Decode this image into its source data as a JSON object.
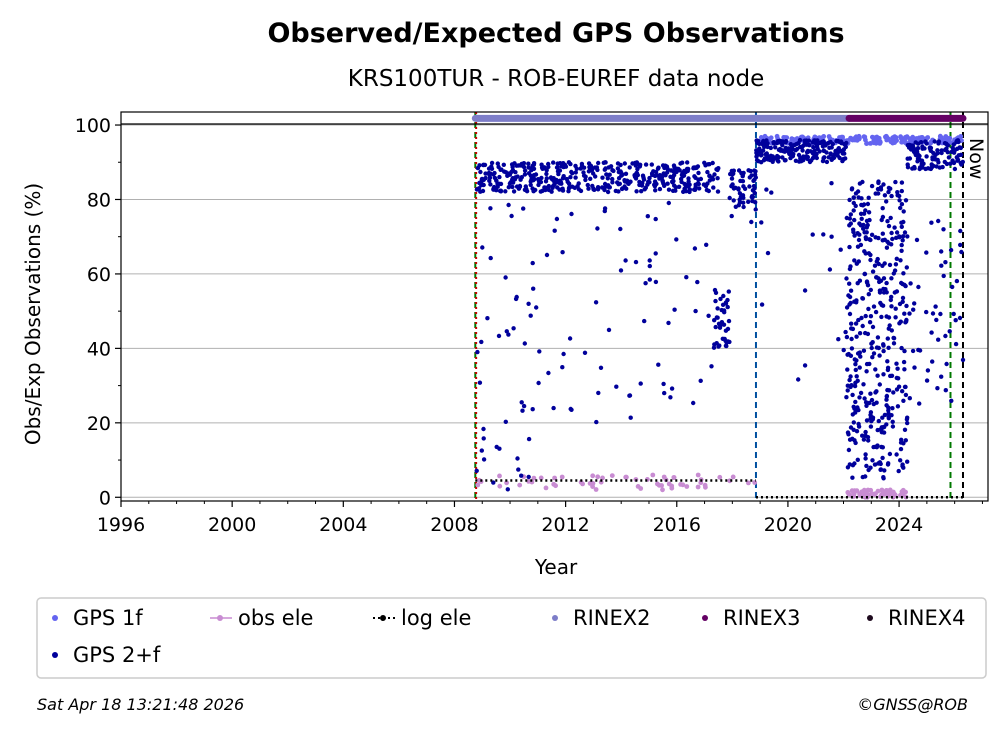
{
  "chart_data": {
    "type": "scatter",
    "title": "Observed/Expected GPS Observations",
    "subtitle": "KRS100TUR - ROB-EUREF data node",
    "xlabel": "Year",
    "ylabel": "Obs/Exp Observations (%)",
    "xlim": [
      1996,
      2027.2
    ],
    "ylim": [
      -1,
      103.5
    ],
    "x_ticks": [
      1996,
      2000,
      2004,
      2008,
      2012,
      2016,
      2020,
      2024
    ],
    "x_tick_labels": [
      "1996",
      "2000",
      "2004",
      "2008",
      "2012",
      "2016",
      "2020",
      "2024"
    ],
    "y_ticks": [
      0,
      20,
      40,
      60,
      80,
      100
    ],
    "y_tick_labels": [
      "0",
      "20",
      "40",
      "60",
      "80",
      "100"
    ],
    "grid": "y",
    "now_label": "Now",
    "colors": {
      "gps1f": "#6464f0",
      "gps2f": "#00009b",
      "obs_ele": "#c88cd2",
      "log_ele": "#000000",
      "rinex2": "#7d7dc8",
      "rinex3": "#640064",
      "rinex4": "#1e0a1e",
      "vline_green": "#007800",
      "vline_red": "#c80000",
      "vline_blue": "#0050a0"
    },
    "vertical_lines": [
      {
        "x": 2008.75,
        "color": "vline_green",
        "style": "dashed"
      },
      {
        "x": 2008.78,
        "color": "vline_red",
        "style": "dotted"
      },
      {
        "x": 2018.85,
        "color": "vline_blue",
        "style": "dashed"
      },
      {
        "x": 2025.85,
        "color": "vline_green",
        "style": "dashed"
      },
      {
        "x": 2026.3,
        "color": "log_ele",
        "style": "dashed"
      }
    ],
    "rinex_bars": [
      {
        "name": "RINEX2",
        "x_start": 2008.75,
        "x_end": 2022.2,
        "y": 101.8
      },
      {
        "name": "RINEX3",
        "x_start": 2022.2,
        "x_end": 2026.3,
        "y": 101.8
      }
    ],
    "log_ele": [
      {
        "x_start": 2008.75,
        "x_end": 2018.85,
        "y": 4.5
      },
      {
        "x_start": 2018.85,
        "x_end": 2026.3,
        "y": 0
      }
    ],
    "series": [
      {
        "name": "GPS 2+f",
        "segments": [
          {
            "x_start": 2008.8,
            "x_end": 2011.0,
            "base": 86,
            "spread": 4,
            "n": 160,
            "drop_rate": 0.28,
            "drop_min": 2,
            "drop_max": 80
          },
          {
            "x_start": 2011.0,
            "x_end": 2017.5,
            "base": 86,
            "spread": 4,
            "n": 380,
            "drop_rate": 0.12,
            "drop_min": 20,
            "drop_max": 80
          },
          {
            "x_start": 2017.3,
            "x_end": 2017.9,
            "base": 48,
            "spread": 8,
            "n": 40,
            "drop_rate": 0.0,
            "drop_min": 0,
            "drop_max": 0
          },
          {
            "x_start": 2017.9,
            "x_end": 2018.85,
            "base": 83,
            "spread": 5,
            "n": 60,
            "drop_rate": 0.1,
            "drop_min": 70,
            "drop_max": 80
          },
          {
            "x_start": 2018.85,
            "x_end": 2022.1,
            "base": 93,
            "spread": 3,
            "n": 220,
            "drop_rate": 0.1,
            "drop_min": 25,
            "drop_max": 88
          },
          {
            "x_start": 2022.1,
            "x_end": 2024.3,
            "base": 45,
            "spread": 40,
            "n": 420,
            "drop_rate": 0.0,
            "drop_min": 0,
            "drop_max": 0
          },
          {
            "x_start": 2024.3,
            "x_end": 2026.3,
            "base": 92,
            "spread": 4,
            "n": 160,
            "drop_rate": 0.25,
            "drop_min": 25,
            "drop_max": 75
          }
        ]
      },
      {
        "name": "GPS 1f",
        "segments": [
          {
            "x_start": 2018.85,
            "x_end": 2026.3,
            "base": 96,
            "spread": 1,
            "n": 180,
            "drop_rate": 0.0,
            "drop_min": 0,
            "drop_max": 0
          }
        ]
      },
      {
        "name": "obs ele",
        "segments": [
          {
            "x_start": 2008.75,
            "x_end": 2018.85,
            "base": 4,
            "spread": 2,
            "n": 60,
            "drop_rate": 0.0,
            "drop_min": 0,
            "drop_max": 0
          },
          {
            "x_start": 2022.1,
            "x_end": 2024.3,
            "base": 1,
            "spread": 1,
            "n": 60,
            "drop_rate": 0.0,
            "drop_min": 0,
            "drop_max": 0
          }
        ]
      }
    ],
    "legend": [
      {
        "label": "GPS 1f",
        "color": "gps1f",
        "marker": "dot"
      },
      {
        "label": "obs ele",
        "color": "obs_ele",
        "marker": "dot-line"
      },
      {
        "label": "log ele",
        "color": "log_ele",
        "marker": "dot-dotted"
      },
      {
        "label": "RINEX2",
        "color": "rinex2",
        "marker": "dot"
      },
      {
        "label": "RINEX3",
        "color": "rinex3",
        "marker": "dot"
      },
      {
        "label": "RINEX4",
        "color": "rinex4",
        "marker": "dot"
      },
      {
        "label": "GPS 2+f",
        "color": "gps2f",
        "marker": "dot"
      }
    ]
  },
  "footer": {
    "timestamp": "Sat Apr 18 13:21:48 2026",
    "credit": "©GNSS@ROB"
  }
}
